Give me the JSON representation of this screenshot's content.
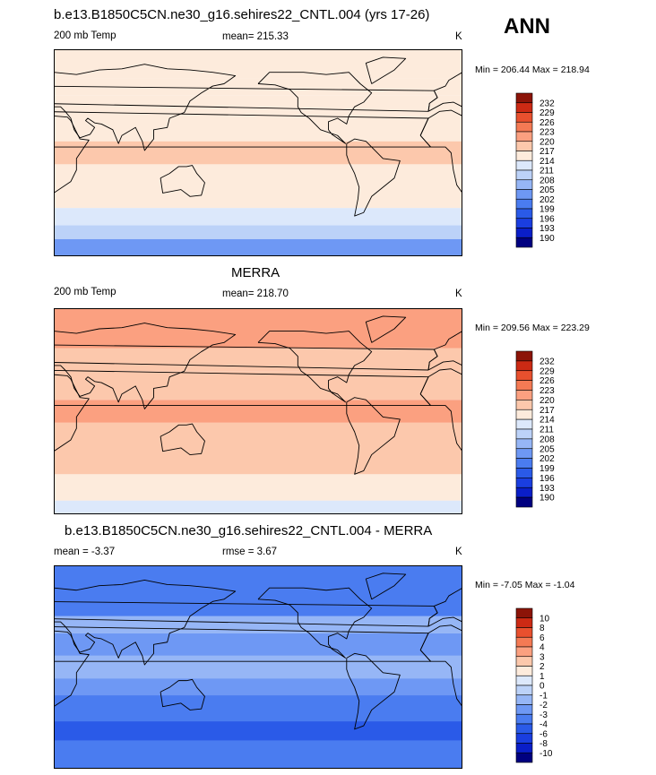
{
  "season": "ANN",
  "colors": {
    "anomaly": [
      "#000080",
      "#0a1ec8",
      "#1a3ee0",
      "#2a5ae8",
      "#4a7cf0",
      "#6e98f4",
      "#96b6f6",
      "#bcd2f8",
      "#dce8fb",
      "#fdebdc",
      "#fcc8ac",
      "#fba080",
      "#f47a54",
      "#e8502e",
      "#cc2a14",
      "#8c1408"
    ]
  },
  "panels": [
    {
      "id": "model",
      "title": "b.e13.B1850C5CN.ne30_g16.sehires22_CNTL.004 (yrs 17-26)",
      "left_label": "200 mb Temp",
      "center_label": "mean= 215.33",
      "units": "K",
      "minmax": "Min = 206.44 Max = 218.94"
    },
    {
      "id": "obs",
      "title": "MERRA",
      "left_label": "200 mb Temp",
      "center_label": "mean= 218.70",
      "units": "K",
      "minmax": "Min = 209.56 Max = 223.29"
    },
    {
      "id": "diff",
      "title": "b.e13.B1850C5CN.ne30_g16.sehires22_CNTL.004 - MERRA",
      "left_label": "mean =  -3.37",
      "center_label": "rmse =   3.67",
      "units": "K",
      "minmax": "Min =  -7.05 Max =  -1.04"
    }
  ],
  "chart_data": [
    {
      "type": "heatmap",
      "title": "b.e13.B1850C5CN.ne30_g16.sehires22_CNTL.004 (yrs 17-26)",
      "variable": "200 mb Temp",
      "units": "K",
      "mean": 215.33,
      "min": 206.44,
      "max": 218.94,
      "colorbar_levels": [
        190,
        193,
        196,
        199,
        202,
        205,
        208,
        211,
        214,
        217,
        220,
        223,
        226,
        229,
        232
      ],
      "colorbar_labels": [
        "232",
        "229",
        "226",
        "223",
        "220",
        "217",
        "214",
        "211",
        "208",
        "205",
        "202",
        "199",
        "196",
        "193",
        "190"
      ],
      "lat_bands": [
        {
          "lat": [
            -90,
            -75
          ],
          "value": 204
        },
        {
          "lat": [
            -75,
            -63
          ],
          "value": 210
        },
        {
          "lat": [
            -63,
            -48
          ],
          "value": 213
        },
        {
          "lat": [
            -48,
            -10
          ],
          "value": 216
        },
        {
          "lat": [
            -10,
            10
          ],
          "value": 217
        },
        {
          "lat": [
            10,
            30
          ],
          "value": 216
        },
        {
          "lat": [
            30,
            50
          ],
          "value": 215
        },
        {
          "lat": [
            50,
            65
          ],
          "value": 216
        },
        {
          "lat": [
            65,
            90
          ],
          "value": 215
        }
      ]
    },
    {
      "type": "heatmap",
      "title": "MERRA",
      "variable": "200 mb Temp",
      "units": "K",
      "mean": 218.7,
      "min": 209.56,
      "max": 223.29,
      "colorbar_levels": [
        190,
        193,
        196,
        199,
        202,
        205,
        208,
        211,
        214,
        217,
        220,
        223,
        226,
        229,
        232
      ],
      "colorbar_labels": [
        "232",
        "229",
        "226",
        "223",
        "220",
        "217",
        "214",
        "211",
        "208",
        "205",
        "202",
        "199",
        "196",
        "193",
        "190"
      ],
      "lat_bands": [
        {
          "lat": [
            -90,
            -78
          ],
          "value": 213
        },
        {
          "lat": [
            -78,
            -55
          ],
          "value": 216
        },
        {
          "lat": [
            -55,
            -10
          ],
          "value": 218
        },
        {
          "lat": [
            -10,
            10
          ],
          "value": 221
        },
        {
          "lat": [
            10,
            35
          ],
          "value": 218
        },
        {
          "lat": [
            35,
            55
          ],
          "value": 218
        },
        {
          "lat": [
            55,
            90
          ],
          "value": 221
        }
      ]
    },
    {
      "type": "heatmap",
      "title": "b.e13.B1850C5CN.ne30_g16.sehires22_CNTL.004 - MERRA",
      "variable": "200 mb Temp",
      "units": "K",
      "mean": -3.37,
      "rmse": 3.67,
      "min": -7.05,
      "max": -1.04,
      "colorbar_levels": [
        -10,
        -8,
        -6,
        -4,
        -3,
        -2,
        -1,
        0,
        1,
        2,
        3,
        4,
        6,
        8,
        10
      ],
      "colorbar_labels": [
        "10",
        "8",
        "6",
        "4",
        "3",
        "2",
        "1",
        "0",
        "-1",
        "-2",
        "-3",
        "-4",
        "-6",
        "-8",
        "-10"
      ],
      "lat_bands": [
        {
          "lat": [
            -90,
            -65
          ],
          "value": -3.5
        },
        {
          "lat": [
            -65,
            -48
          ],
          "value": -5
        },
        {
          "lat": [
            -48,
            -25
          ],
          "value": -3.5
        },
        {
          "lat": [
            -25,
            -10
          ],
          "value": -2.5
        },
        {
          "lat": [
            -10,
            10
          ],
          "value": -1.5
        },
        {
          "lat": [
            10,
            30
          ],
          "value": -2.5
        },
        {
          "lat": [
            30,
            45
          ],
          "value": -1.5
        },
        {
          "lat": [
            45,
            90
          ],
          "value": -3.5
        }
      ]
    }
  ]
}
